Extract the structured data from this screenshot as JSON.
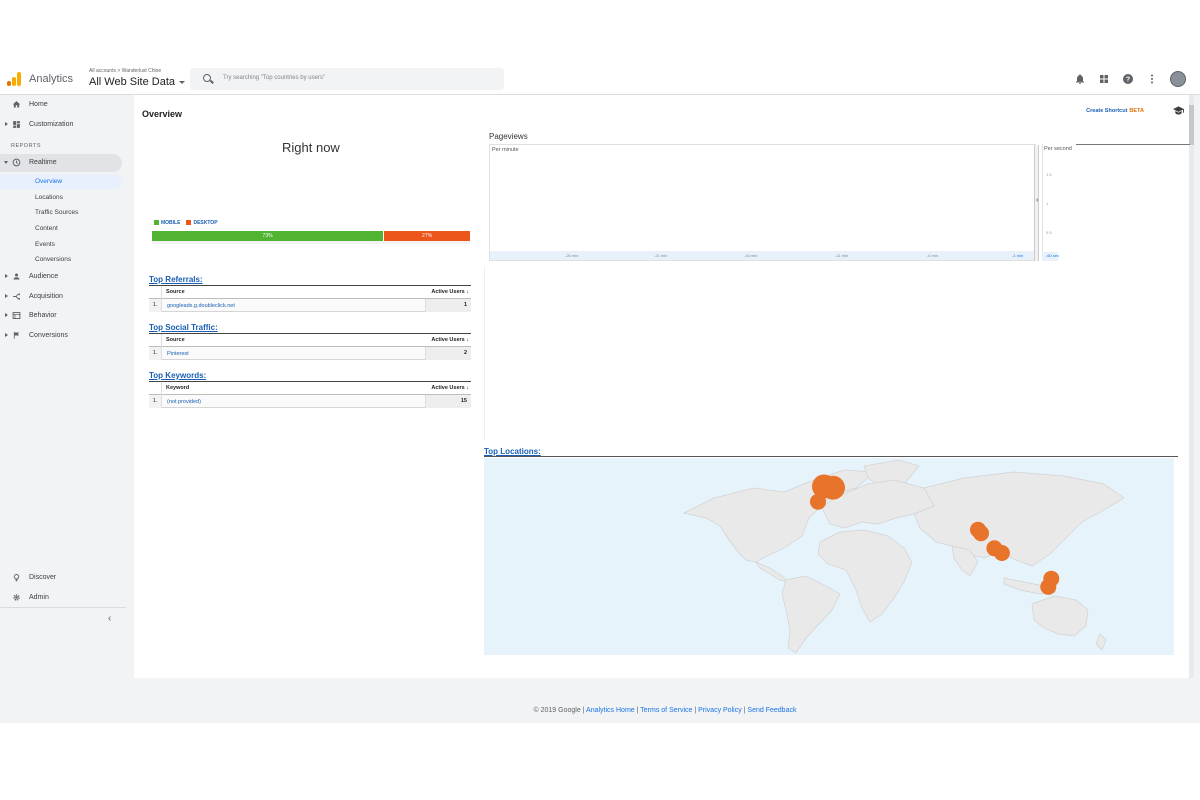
{
  "app": {
    "brand": "Analytics",
    "breadcrumb": "All accounts > Wanderlust Chloe",
    "view_name": "All Web Site Data",
    "search_placeholder": "Try searching \"Top countries by users\"",
    "accent_color": "#1a73e8",
    "logo_colors": [
      "#f9ab00",
      "#e37400"
    ],
    "top_icons": [
      "bell-icon",
      "apps-grid-icon",
      "help-icon",
      "more-vert-icon",
      "avatar"
    ]
  },
  "sidebar": {
    "items_top": [
      {
        "label": "Home",
        "icon": "home-icon"
      },
      {
        "label": "Customization",
        "icon": "dashboard-icon"
      }
    ],
    "reports_label": "REPORTS",
    "realtime": {
      "label": "Realtime",
      "icon": "clock-icon",
      "sub": [
        "Overview",
        "Locations",
        "Traffic Sources",
        "Content",
        "Events",
        "Conversions"
      ],
      "selected": "Overview"
    },
    "items_reports": [
      {
        "label": "Audience",
        "icon": "person-icon"
      },
      {
        "label": "Acquisition",
        "icon": "acquisition-icon"
      },
      {
        "label": "Behavior",
        "icon": "behavior-icon"
      },
      {
        "label": "Conversions",
        "icon": "flag-icon"
      }
    ],
    "items_bottom": [
      {
        "label": "Discover",
        "icon": "lightbulb-icon"
      },
      {
        "label": "Admin",
        "icon": "gear-icon"
      }
    ]
  },
  "overview": {
    "title": "Overview",
    "create_shortcut": "Create Shortcut",
    "beta": "BETA",
    "right_now": "Right now",
    "device_legend": {
      "mobile": "MOBILE",
      "desktop": "DESKTOP"
    },
    "device_split": [
      {
        "label": "73%",
        "value": 0.73,
        "color": "#50b432"
      },
      {
        "label": "27%",
        "value": 0.27,
        "color": "#ed561b"
      }
    ],
    "pageviews": {
      "title": "Pageviews",
      "per_minute": "Per minute",
      "per_second": "Per second",
      "x_ticks": [
        "-26 min",
        "-21 min",
        "-16 min",
        "-11 min",
        "-6 min"
      ],
      "tick_end": "-1 min",
      "sec_ticks": [
        "1.5",
        "1",
        "0.5",
        "-60 sec"
      ]
    }
  },
  "top_referrals": {
    "title": "Top Referrals:",
    "col_source": "Source",
    "col_users": "Active Users",
    "rows": [
      {
        "n": "1.",
        "source": "googleads.g.doubleclick.net",
        "users": "1"
      }
    ]
  },
  "top_social": {
    "title": "Top Social Traffic:",
    "col_source": "Source",
    "col_users": "Active Users",
    "rows": [
      {
        "n": "1.",
        "source": "Pinterest",
        "users": "2"
      }
    ]
  },
  "top_keywords": {
    "title": "Top Keywords:",
    "col_source": "Keyword",
    "col_users": "Active Users",
    "rows": [
      {
        "n": "1.",
        "source": "(not provided)",
        "users": "15"
      }
    ]
  },
  "top_locations": {
    "title": "Top Locations:",
    "marker_color": "#e8732a",
    "markers": [
      {
        "region": "Western Europe",
        "lon": -2,
        "lat": 51,
        "size": 3
      },
      {
        "region": "Western Europe",
        "lon": 4,
        "lat": 50,
        "size": 3
      },
      {
        "region": "Iberia / North Africa",
        "lon": -6,
        "lat": 38,
        "size": 2
      },
      {
        "region": "Southeast Asia",
        "lon": 101,
        "lat": 14,
        "size": 2
      },
      {
        "region": "Southeast Asia",
        "lon": 103,
        "lat": 11,
        "size": 2
      },
      {
        "region": "Indonesia",
        "lon": 112,
        "lat": -2,
        "size": 2
      },
      {
        "region": "Indonesia",
        "lon": 117,
        "lat": -6,
        "size": 2
      },
      {
        "region": "Eastern Australia",
        "lon": 150,
        "lat": -28,
        "size": 2
      },
      {
        "region": "Eastern Australia",
        "lon": 148,
        "lat": -35,
        "size": 2
      }
    ]
  },
  "footer": {
    "copyright": "© 2019 Google |",
    "links": [
      "Analytics Home",
      "Terms of Service",
      "Privacy Policy",
      "Send Feedback"
    ]
  }
}
